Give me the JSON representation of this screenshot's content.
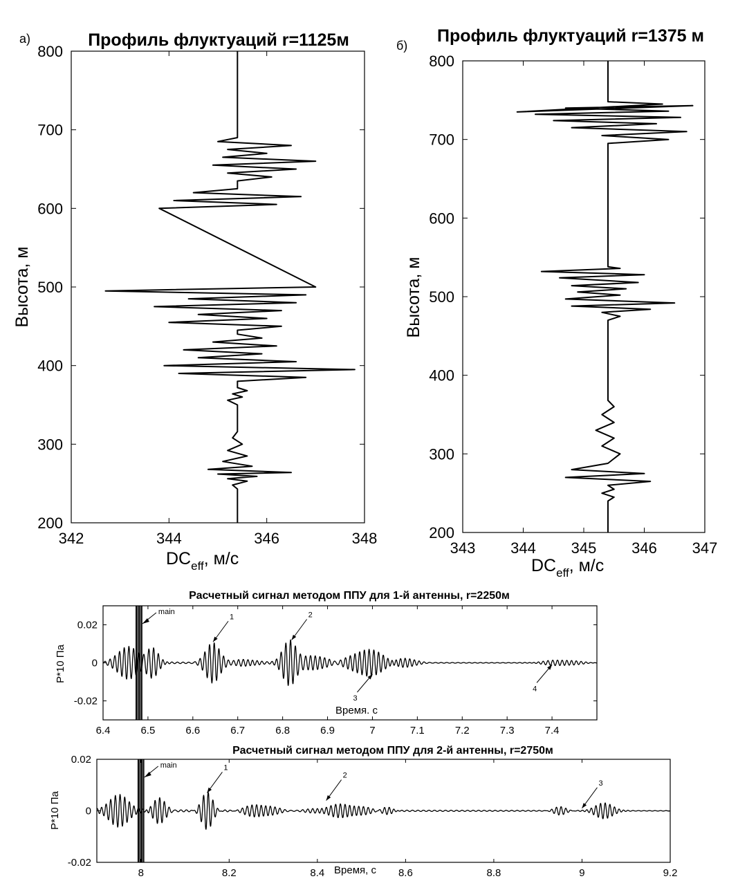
{
  "chart_data": [
    {
      "type": "line",
      "panel_letter": "а)",
      "title": "Профиль флуктуаций r=1125м",
      "xlabel_main": "DC",
      "xlabel_sub": "eff",
      "xlabel_rest": ", м/с",
      "ylabel": "Высота, м",
      "xlim": [
        342,
        348
      ],
      "ylim": [
        200,
        800
      ],
      "xticks": [
        "342",
        "344",
        "346",
        "348"
      ],
      "yticks": [
        "200",
        "300",
        "400",
        "500",
        "600",
        "700",
        "800"
      ],
      "grid": false,
      "series": [
        {
          "x": [
            345.4,
            345.4,
            345.3,
            345.6,
            345.2,
            345.8,
            345.0,
            346.5,
            344.8,
            345.7,
            345.1,
            345.6,
            345.2,
            345.5,
            345.3,
            345.4,
            345.4,
            345.2,
            345.5,
            345.3,
            345.6,
            345.4,
            345.4,
            346.8,
            344.2,
            347.8,
            343.9,
            346.6,
            344.6,
            345.9,
            344.3,
            346.2,
            344.9,
            345.9,
            345.4,
            345.4,
            346.3,
            344.0,
            346.0,
            344.6,
            346.3,
            343.7,
            346.6,
            344.4,
            346.8,
            342.7,
            347.0,
            343.8,
            346.2,
            344.1,
            346.7,
            344.5,
            345.4,
            345.4,
            345.4,
            346.1,
            345.2,
            346.6,
            344.9,
            347.0,
            345.1,
            346.0,
            345.2,
            346.5,
            345.0,
            345.4,
            345.4
          ],
          "y": [
            200,
            243,
            248,
            253,
            256,
            259,
            262,
            264,
            268,
            272,
            278,
            285,
            292,
            300,
            308,
            316,
            350,
            356,
            360,
            364,
            368,
            372,
            380,
            385,
            390,
            395,
            400,
            405,
            410,
            415,
            420,
            425,
            430,
            435,
            440,
            445,
            450,
            455,
            460,
            465,
            470,
            475,
            480,
            485,
            490,
            495,
            500,
            600,
            605,
            610,
            615,
            620,
            625,
            630,
            635,
            640,
            645,
            650,
            655,
            660,
            665,
            670,
            675,
            680,
            685,
            690,
            800
          ]
        }
      ]
    },
    {
      "type": "line",
      "panel_letter": "б)",
      "title": "Профиль флуктуаций r=1375 м",
      "xlabel_main": "DC",
      "xlabel_sub": "eff",
      "xlabel_rest": ", м/с",
      "ylabel": "Высота, м",
      "xlim": [
        343,
        347
      ],
      "ylim": [
        200,
        800
      ],
      "xticks": [
        "343",
        "344",
        "345",
        "346",
        "347"
      ],
      "yticks": [
        "200",
        "300",
        "400",
        "500",
        "600",
        "700",
        "800"
      ],
      "grid": false,
      "series": [
        {
          "x": [
            345.4,
            345.4,
            345.5,
            345.3,
            345.5,
            345.4,
            346.1,
            344.7,
            346.0,
            344.8,
            345.4,
            345.6,
            345.3,
            345.5,
            345.2,
            345.5,
            345.3,
            345.5,
            345.4,
            345.4,
            345.4,
            345.6,
            345.3,
            346.1,
            344.8,
            346.5,
            344.7,
            345.6,
            344.9,
            345.7,
            344.8,
            345.9,
            344.6,
            346.0,
            344.3,
            345.6,
            345.4,
            345.4,
            345.4,
            346.4,
            345.3,
            346.7,
            344.8,
            346.2,
            344.5,
            346.6,
            344.2,
            346.4,
            344.7,
            346.8,
            343.9,
            346.3,
            345.4,
            345.4
          ],
          "y": [
            200,
            240,
            245,
            250,
            255,
            260,
            265,
            270,
            275,
            280,
            288,
            300,
            310,
            320,
            330,
            340,
            350,
            360,
            368,
            380,
            470,
            475,
            480,
            484,
            488,
            492,
            497,
            502,
            506,
            510,
            514,
            518,
            524,
            528,
            532,
            536,
            538,
            600,
            695,
            700,
            705,
            710,
            715,
            720,
            724,
            728,
            732,
            736,
            740,
            743,
            735,
            745,
            748,
            800
          ]
        }
      ]
    },
    {
      "type": "line",
      "title": "Расчетный сигнал методом ППУ для 1-й антенны, r=2250м",
      "xlabel": "Время. с",
      "ylabel": "P*10 Па",
      "xlim": [
        6.4,
        7.5
      ],
      "ylim": [
        -0.03,
        0.03
      ],
      "xticks": [
        "6.4",
        "6.5",
        "6.6",
        "6.7",
        "6.8",
        "6.9",
        "7",
        "7.1",
        "7.2",
        "7.3",
        "7.4"
      ],
      "yticks": [
        "0.02",
        "0",
        "-0.02"
      ],
      "grid": false,
      "packets": [
        {
          "center": 6.455,
          "amp": 0.009,
          "width": 0.03,
          "freq": 95
        },
        {
          "center": 6.51,
          "amp": 0.008,
          "width": 0.02,
          "freq": 95
        },
        {
          "center": 6.645,
          "amp": 0.011,
          "width": 0.022,
          "freq": 95
        },
        {
          "center": 6.72,
          "amp": 0.002,
          "width": 0.03,
          "freq": 95
        },
        {
          "center": 6.815,
          "amp": 0.012,
          "width": 0.022,
          "freq": 95
        },
        {
          "center": 6.87,
          "amp": 0.004,
          "width": 0.04,
          "freq": 95
        },
        {
          "center": 6.99,
          "amp": 0.007,
          "width": 0.05,
          "freq": 95
        },
        {
          "center": 7.07,
          "amp": 0.003,
          "width": 0.03,
          "freq": 95
        },
        {
          "center": 7.42,
          "amp": 0.0015,
          "width": 0.05,
          "freq": 95
        }
      ],
      "main_pulse": {
        "time": 6.48,
        "label": "main"
      },
      "annotations": [
        {
          "text": "1",
          "x": 6.645,
          "y": 0.011
        },
        {
          "text": "2",
          "x": 6.82,
          "y": 0.012
        },
        {
          "text": "3",
          "x": 7.0,
          "y": -0.006
        },
        {
          "text": "4",
          "x": 7.4,
          "y": -0.001
        }
      ]
    },
    {
      "type": "line",
      "title": "Расчетный сигнал методом ППУ для 2-й антенны, r=2750м",
      "xlabel": "Время, с",
      "ylabel": "P*10 Па",
      "xlim": [
        7.9,
        9.2
      ],
      "ylim": [
        -0.02,
        0.02
      ],
      "xticks": [
        "8",
        "8.2",
        "8.4",
        "8.6",
        "8.8",
        "9",
        "9.2"
      ],
      "yticks": [
        "0.02",
        "0",
        "-0.02"
      ],
      "grid": false,
      "packets": [
        {
          "center": 7.95,
          "amp": 0.006,
          "width": 0.035,
          "freq": 95
        },
        {
          "center": 8.04,
          "amp": 0.005,
          "width": 0.02,
          "freq": 95
        },
        {
          "center": 8.15,
          "amp": 0.007,
          "width": 0.018,
          "freq": 95
        },
        {
          "center": 8.27,
          "amp": 0.0025,
          "width": 0.04,
          "freq": 95
        },
        {
          "center": 8.46,
          "amp": 0.0025,
          "width": 0.06,
          "freq": 95
        },
        {
          "center": 8.56,
          "amp": 0.0015,
          "width": 0.02,
          "freq": 95
        },
        {
          "center": 8.95,
          "amp": 0.0015,
          "width": 0.02,
          "freq": 95
        },
        {
          "center": 9.05,
          "amp": 0.003,
          "width": 0.03,
          "freq": 95
        }
      ],
      "main_pulse": {
        "time": 8.0,
        "label": "main"
      },
      "annotations": [
        {
          "text": "1",
          "x": 8.15,
          "y": 0.007
        },
        {
          "text": "2",
          "x": 8.42,
          "y": 0.004
        },
        {
          "text": "3",
          "x": 9.0,
          "y": 0.001
        }
      ]
    }
  ]
}
